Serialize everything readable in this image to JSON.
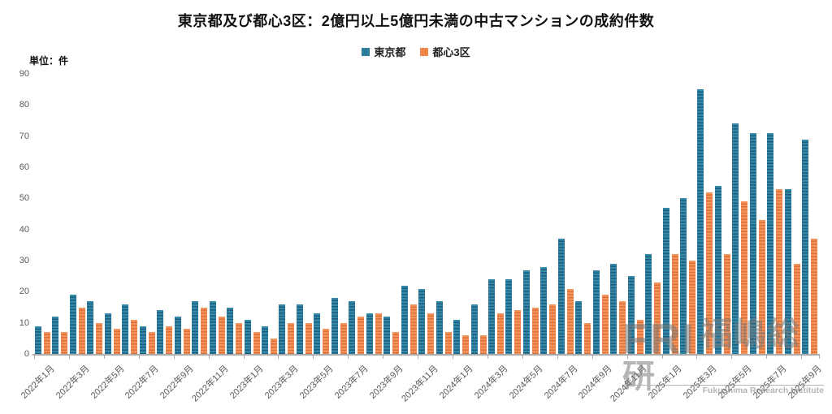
{
  "title": "東京都及び都心3区：2億円以上5億円未満の中古マンションの成約件数",
  "unit_label": "単位：件",
  "legend": [
    {
      "label": "東京都",
      "color": "#2e7e9d",
      "stripe": "#1d5e7e",
      "base": "#3488a8"
    },
    {
      "label": "都心3区",
      "color": "#ee8849",
      "stripe": "#dd7034",
      "base": "#f5935c"
    }
  ],
  "watermark": {
    "abbr": "FRI",
    "name": "福嶋総研",
    "subtitle": "Fukushima Research Institute"
  },
  "chart_data": {
    "type": "bar",
    "title": "東京都及び都心3区：2億円以上5億円未満の中古マンションの成約件数",
    "ylabel": "単位：件",
    "xlabel": "",
    "ylim": [
      0,
      90
    ],
    "y_ticks": [
      0,
      10,
      20,
      30,
      40,
      50,
      60,
      70,
      80,
      90
    ],
    "grid": false,
    "legend_position": "top",
    "categories": [
      "2022年1月",
      "2022年2月",
      "2022年3月",
      "2022年4月",
      "2022年5月",
      "2022年6月",
      "2022年7月",
      "2022年8月",
      "2022年9月",
      "2022年10月",
      "2022年11月",
      "2022年12月",
      "2023年1月",
      "2023年2月",
      "2023年3月",
      "2023年4月",
      "2023年5月",
      "2023年6月",
      "2023年7月",
      "2023年8月",
      "2023年9月",
      "2023年10月",
      "2023年11月",
      "2023年12月",
      "2024年1月",
      "2024年2月",
      "2024年3月",
      "2024年4月",
      "2024年5月",
      "2024年6月",
      "2024年7月",
      "2024年8月",
      "2024年9月",
      "2024年10月",
      "2024年11月",
      "2024年12月",
      "2025年1月",
      "2025年2月",
      "2025年3月",
      "2025年4月",
      "2025年5月",
      "2025年6月",
      "2025年7月",
      "2025年8月",
      "2025年9月"
    ],
    "x_tick_labels": [
      "2022年1月",
      "2022年3月",
      "2022年5月",
      "2022年7月",
      "2022年9月",
      "2022年11月",
      "2023年1月",
      "2023年3月",
      "2023年5月",
      "2023年7月",
      "2023年9月",
      "2023年11月",
      "2024年1月",
      "2024年3月",
      "2024年5月",
      "2024年7月",
      "2024年9月",
      "2024年11月",
      "2025年1月",
      "2025年3月",
      "2025年5月",
      "2025年7月",
      "2025年9月"
    ],
    "series": [
      {
        "name": "東京都",
        "color": "#2e7e9d",
        "values": [
          9,
          12,
          19,
          17,
          13,
          16,
          9,
          14,
          12,
          17,
          17,
          15,
          11,
          9,
          16,
          16,
          13,
          18,
          17,
          13,
          12,
          22,
          21,
          17,
          11,
          16,
          24,
          24,
          27,
          28,
          37,
          17,
          27,
          29,
          25,
          32,
          47,
          50,
          85,
          54,
          74,
          71,
          71,
          53,
          69
        ]
      },
      {
        "name": "都心3区",
        "color": "#ee8849",
        "values": [
          7,
          7,
          15,
          10,
          8,
          11,
          7,
          9,
          8,
          15,
          12,
          10,
          7,
          5,
          10,
          10,
          8,
          10,
          12,
          13,
          7,
          16,
          13,
          7,
          6,
          6,
          13,
          14,
          15,
          16,
          21,
          10,
          19,
          17,
          11,
          23,
          32,
          30,
          52,
          32,
          49,
          43,
          53,
          29,
          37
        ]
      }
    ]
  }
}
